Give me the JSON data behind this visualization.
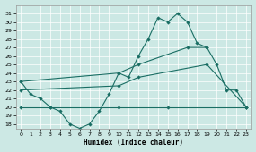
{
  "xlabel": "Humidex (Indice chaleur)",
  "bg_color": "#cce8e4",
  "line_color": "#1a6e64",
  "series_main": {
    "x": [
      0,
      1,
      2,
      3,
      4,
      5,
      6,
      7,
      8,
      9,
      10,
      11,
      12,
      13,
      14,
      15,
      16,
      17,
      18,
      19,
      20,
      21,
      22,
      23
    ],
    "y": [
      23,
      21.5,
      21,
      20,
      19.5,
      18,
      17.5,
      18,
      19.5,
      21.5,
      24,
      23.5,
      26,
      28,
      30.5,
      30,
      31,
      30,
      27.5,
      27,
      25,
      22,
      22,
      20
    ]
  },
  "series_flat": {
    "x": [
      0,
      3,
      10,
      15,
      23
    ],
    "y": [
      20,
      20,
      20,
      20,
      20
    ]
  },
  "series_diag_low": {
    "x": [
      0,
      10,
      12,
      19,
      23
    ],
    "y": [
      22,
      22.5,
      23.5,
      25,
      20
    ]
  },
  "series_diag_high": {
    "x": [
      0,
      10,
      12,
      17,
      19
    ],
    "y": [
      23,
      24,
      25,
      27,
      27
    ]
  },
  "xlim": [
    -0.5,
    23.5
  ],
  "ylim": [
    17.5,
    32
  ],
  "yticks": [
    18,
    19,
    20,
    21,
    22,
    23,
    24,
    25,
    26,
    27,
    28,
    29,
    30,
    31
  ],
  "xticks": [
    0,
    1,
    2,
    3,
    4,
    5,
    6,
    7,
    8,
    9,
    10,
    11,
    12,
    13,
    14,
    15,
    16,
    17,
    18,
    19,
    20,
    21,
    22,
    23
  ]
}
